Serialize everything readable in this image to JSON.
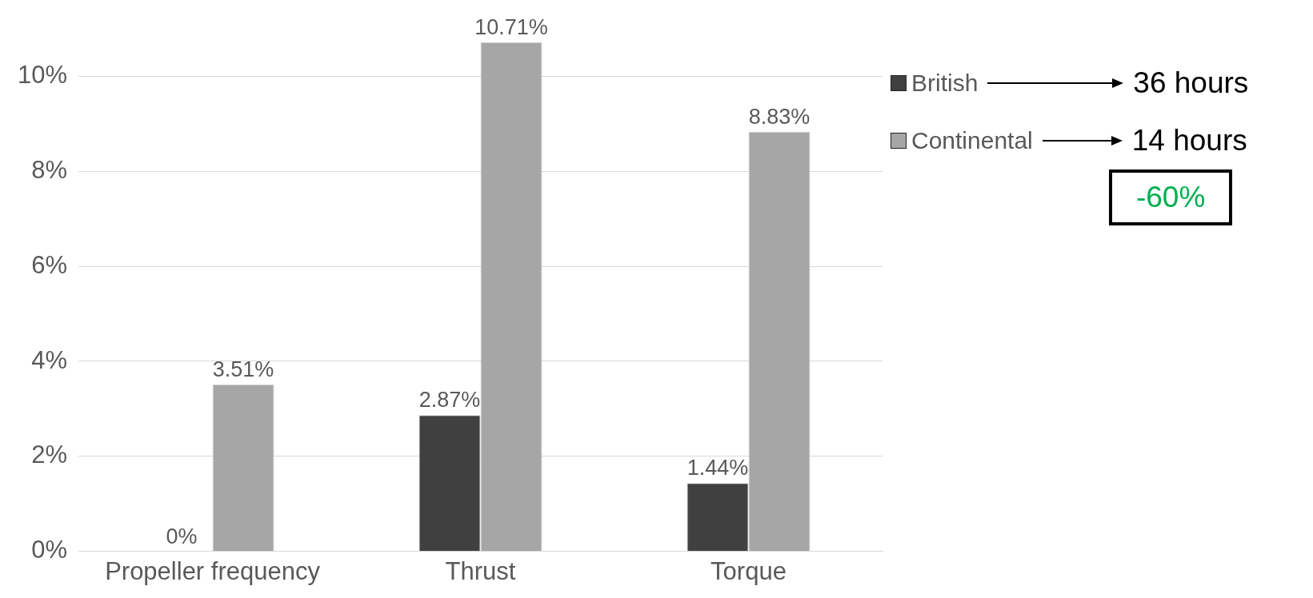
{
  "chart_data": {
    "type": "bar",
    "categories": [
      "Propeller frequency",
      "Thrust",
      "Torque"
    ],
    "series": [
      {
        "name": "British",
        "color": "#404040",
        "values": [
          0,
          2.87,
          1.44
        ]
      },
      {
        "name": "Continental",
        "color": "#a6a6a6",
        "values": [
          3.51,
          10.71,
          8.83
        ]
      }
    ],
    "ylim": [
      0,
      10.71
    ],
    "yticks": [
      {
        "value": 0,
        "label": "0%"
      },
      {
        "value": 2,
        "label": "2%"
      },
      {
        "value": 4,
        "label": "4%"
      },
      {
        "value": 6,
        "label": "6%"
      },
      {
        "value": 8,
        "label": "8%"
      },
      {
        "value": 10,
        "label": "10%"
      }
    ],
    "value_labels": [
      [
        "0%",
        "2.87%",
        "1.44%"
      ],
      [
        "3.51%",
        "10.71%",
        "8.83%"
      ]
    ],
    "annotations": [
      "36 hours",
      "14 hours",
      "-60%"
    ],
    "grid": "y",
    "legend": "right"
  }
}
